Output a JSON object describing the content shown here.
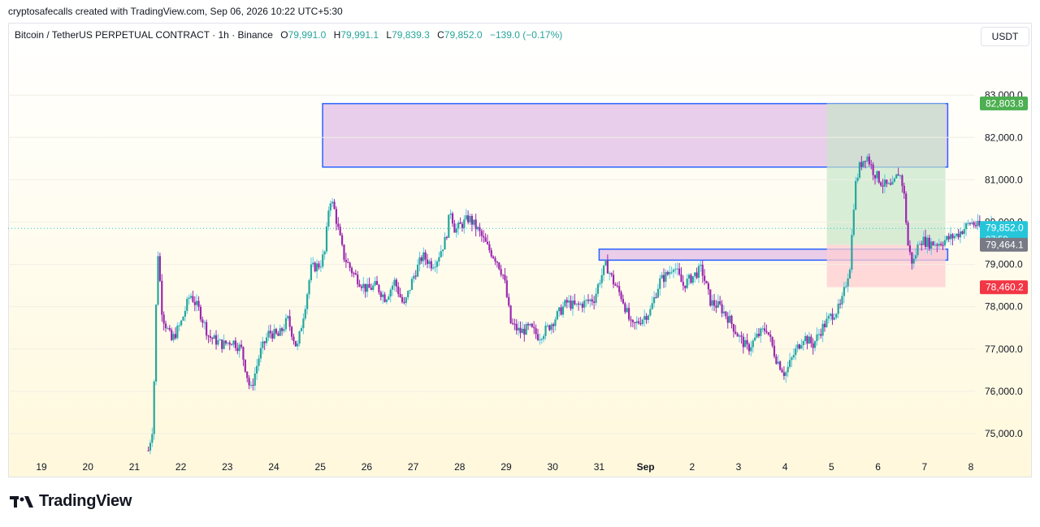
{
  "header": {
    "attribution": "cryptosafecalls created with TradingView.com, Sep 06, 2026 10:22 UTC+5:30"
  },
  "legend": {
    "symbol": "Bitcoin / TetherUS PERPETUAL CONTRACT · 1h · Binance",
    "o_label": "O",
    "o_value": "79,991.0",
    "h_label": "H",
    "h_value": "79,991.1",
    "l_label": "L",
    "l_value": "79,839.3",
    "c_label": "C",
    "c_value": "79,852.0",
    "change": "−139.0 (−0.17%)"
  },
  "unit_button": "USDT",
  "footer": {
    "brand": "TradingView"
  },
  "colors": {
    "up": "#26a69a",
    "up_wick": "#59c7e8",
    "down": "#9c27b0",
    "zone_fill": "#e1bee7",
    "zone_border": "#2962ff",
    "target": "#c8e6c9",
    "stop": "#ffcdd2",
    "price": "#26c6da"
  },
  "chart_data": {
    "type": "candlestick",
    "title": "",
    "x_ticks": [
      "19",
      "20",
      "21",
      "22",
      "23",
      "24",
      "25",
      "26",
      "27",
      "28",
      "29",
      "30",
      "31",
      "Sep",
      "2",
      "3",
      "4",
      "5",
      "6",
      "7",
      "8"
    ],
    "y_ticks": [
      "75,000.0",
      "76,000.0",
      "77,000.0",
      "78,000.0",
      "79,000.0",
      "80,000.0",
      "81,000.0",
      "82,000.0",
      "83,000.0"
    ],
    "y_range": [
      74500,
      83500
    ],
    "price_labels": [
      {
        "text": "82,803.8",
        "value": 82803.8,
        "color": "#4caf50"
      },
      {
        "text": "79,852.0",
        "value": 79852.0,
        "color": "#26c6da",
        "sub": "07:59"
      },
      {
        "text": "79,464.1",
        "value": 79464.1,
        "color": "#787b86"
      },
      {
        "text": "78,460.2",
        "value": 78460.2,
        "color": "#f23645"
      }
    ],
    "path_day_close": [
      [
        21.3,
        74600
      ],
      [
        21.4,
        75200
      ],
      [
        21.5,
        79400
      ],
      [
        21.6,
        77800
      ],
      [
        21.8,
        77200
      ],
      [
        22.0,
        77600
      ],
      [
        22.2,
        78300
      ],
      [
        22.4,
        77900
      ],
      [
        22.6,
        77300
      ],
      [
        22.9,
        77100
      ],
      [
        23.1,
        77200
      ],
      [
        23.3,
        77000
      ],
      [
        23.5,
        76000
      ],
      [
        23.7,
        76900
      ],
      [
        23.9,
        77400
      ],
      [
        24.1,
        77300
      ],
      [
        24.3,
        77700
      ],
      [
        24.5,
        77000
      ],
      [
        24.7,
        78200
      ],
      [
        24.8,
        78900
      ],
      [
        25.0,
        79000
      ],
      [
        25.1,
        79300
      ],
      [
        25.2,
        80600
      ],
      [
        25.3,
        80300
      ],
      [
        25.5,
        79200
      ],
      [
        25.7,
        78800
      ],
      [
        26.0,
        78400
      ],
      [
        26.2,
        78500
      ],
      [
        26.4,
        78200
      ],
      [
        26.6,
        78600
      ],
      [
        26.8,
        78000
      ],
      [
        27.0,
        78700
      ],
      [
        27.2,
        79200
      ],
      [
        27.4,
        79000
      ],
      [
        27.5,
        79100
      ],
      [
        27.7,
        79600
      ],
      [
        27.8,
        80300
      ],
      [
        27.9,
        79800
      ],
      [
        28.0,
        79900
      ],
      [
        28.2,
        80100
      ],
      [
        28.4,
        79800
      ],
      [
        28.6,
        79400
      ],
      [
        28.8,
        79100
      ],
      [
        28.95,
        78700
      ],
      [
        29.1,
        77600
      ],
      [
        29.3,
        77400
      ],
      [
        29.5,
        77500
      ],
      [
        29.7,
        77300
      ],
      [
        29.9,
        77500
      ],
      [
        30.1,
        77800
      ],
      [
        30.3,
        78100
      ],
      [
        30.5,
        78000
      ],
      [
        30.7,
        78100
      ],
      [
        30.9,
        78200
      ],
      [
        31.0,
        78600
      ],
      [
        31.15,
        79000
      ],
      [
        31.3,
        78600
      ],
      [
        31.5,
        78200
      ],
      [
        31.7,
        77500
      ],
      [
        31.9,
        77700
      ],
      [
        32.1,
        77900
      ],
      [
        32.3,
        78600
      ],
      [
        32.5,
        78800
      ],
      [
        32.6,
        79000
      ],
      [
        32.8,
        78500
      ],
      [
        33.0,
        78700
      ],
      [
        33.2,
        78900
      ],
      [
        33.4,
        78100
      ],
      [
        33.6,
        78000
      ],
      [
        33.8,
        77700
      ],
      [
        34.0,
        77300
      ],
      [
        34.2,
        77000
      ],
      [
        34.4,
        77300
      ],
      [
        34.6,
        77500
      ],
      [
        34.8,
        76800
      ],
      [
        35.0,
        76400
      ],
      [
        35.2,
        76900
      ],
      [
        35.4,
        77300
      ],
      [
        35.6,
        77100
      ],
      [
        35.8,
        77500
      ],
      [
        36.0,
        77800
      ],
      [
        36.2,
        78000
      ],
      [
        36.3,
        78500
      ],
      [
        36.4,
        79000
      ],
      [
        36.5,
        80800
      ],
      [
        36.6,
        81300
      ],
      [
        36.75,
        81600
      ],
      [
        36.9,
        81200
      ],
      [
        37.1,
        80900
      ],
      [
        37.3,
        80800
      ],
      [
        37.45,
        81200
      ],
      [
        37.55,
        80800
      ],
      [
        37.65,
        79400
      ],
      [
        37.75,
        79000
      ],
      [
        37.9,
        79600
      ],
      [
        38.1,
        79500
      ],
      [
        38.3,
        79500
      ],
      [
        38.5,
        79600
      ],
      [
        38.7,
        79700
      ],
      [
        38.9,
        79900
      ],
      [
        39.0,
        80000
      ],
      [
        39.15,
        79900
      ],
      [
        39.3,
        79900
      ],
      [
        39.45,
        80000
      ]
    ],
    "zones": [
      {
        "name": "upper supply zone",
        "x0": 25.05,
        "x1": 38.5,
        "y0": 81300,
        "y1": 82800
      },
      {
        "name": "lower demand zone",
        "x0": 31.0,
        "x1": 38.5,
        "y0": 79100,
        "y1": 79360
      }
    ],
    "position": {
      "x0": 35.9,
      "x1": 38.45,
      "entry": 79464.1,
      "target": 82803.8,
      "stop": 78460.2
    }
  }
}
